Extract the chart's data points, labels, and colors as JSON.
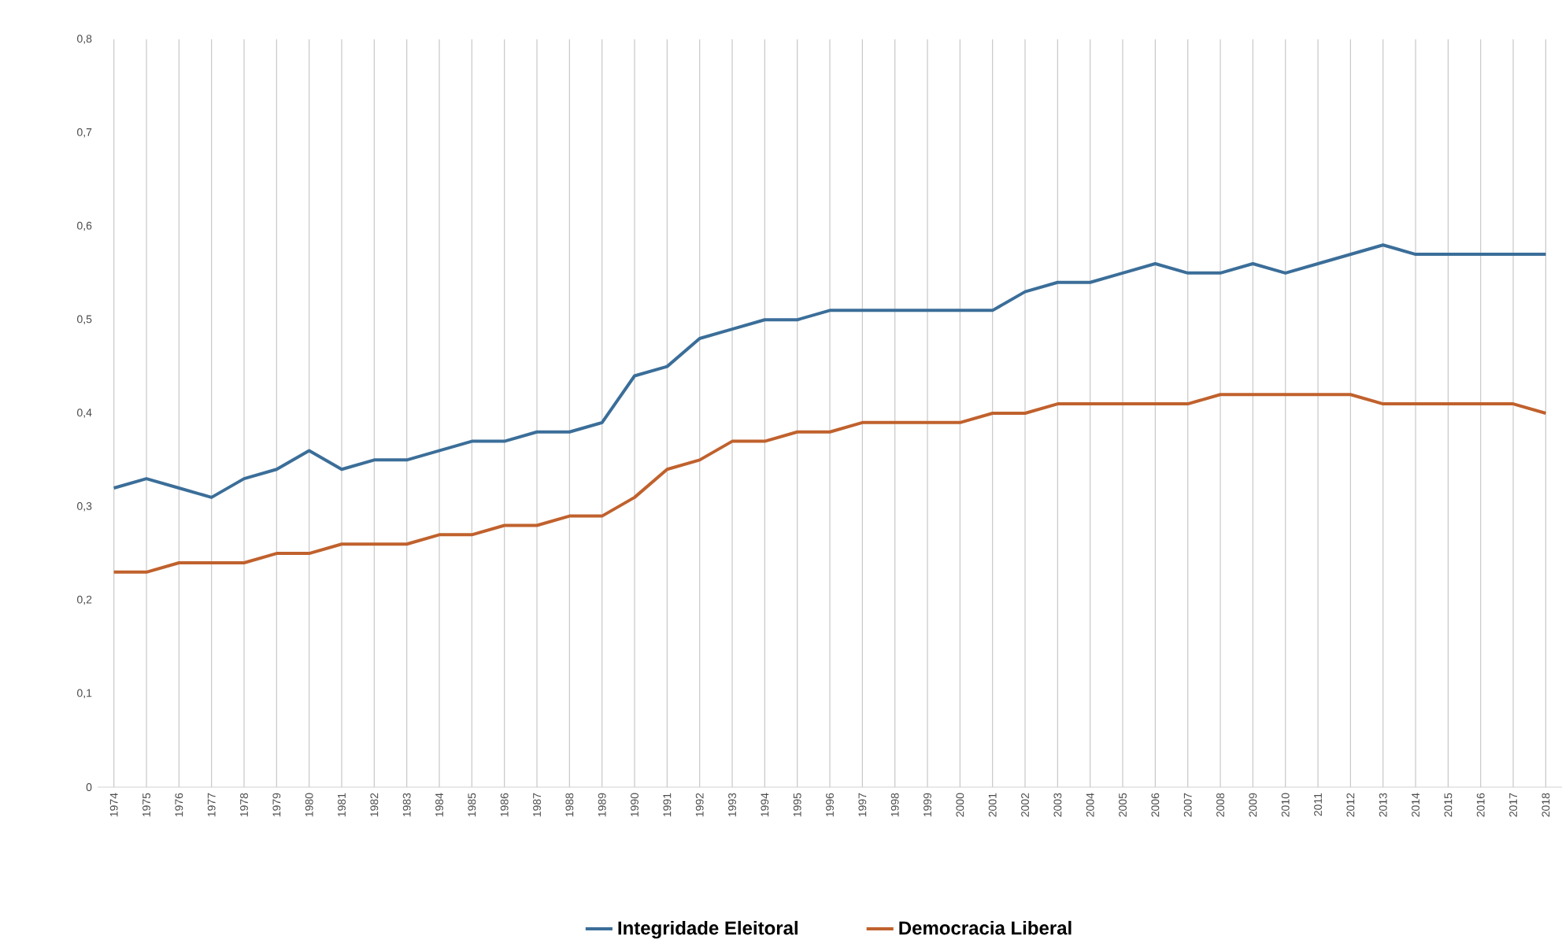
{
  "chart_data": {
    "type": "line",
    "categories": [
      "1974",
      "1975",
      "1976",
      "1977",
      "1978",
      "1979",
      "1980",
      "1981",
      "1982",
      "1983",
      "1984",
      "1985",
      "1986",
      "1987",
      "1988",
      "1989",
      "1990",
      "1991",
      "1992",
      "1993",
      "1994",
      "1995",
      "1996",
      "1997",
      "1998",
      "1999",
      "2000",
      "2001",
      "2002",
      "2003",
      "2004",
      "2005",
      "2006",
      "2007",
      "2008",
      "2009",
      "2010",
      "2011",
      "2012",
      "2013",
      "2014",
      "2015",
      "2016",
      "2017",
      "2018"
    ],
    "series": [
      {
        "name": "Integridade Eleitoral",
        "color": "#3b6e99",
        "values": [
          0.32,
          0.33,
          0.32,
          0.31,
          0.33,
          0.34,
          0.36,
          0.34,
          0.35,
          0.35,
          0.36,
          0.37,
          0.37,
          0.38,
          0.38,
          0.39,
          0.44,
          0.45,
          0.48,
          0.49,
          0.5,
          0.5,
          0.51,
          0.51,
          0.51,
          0.51,
          0.51,
          0.51,
          0.53,
          0.54,
          0.54,
          0.55,
          0.56,
          0.55,
          0.55,
          0.56,
          0.55,
          0.56,
          0.57,
          0.58,
          0.57,
          0.57,
          0.57,
          0.57,
          0.57
        ]
      },
      {
        "name": "Democracia Liberal",
        "color": "#c0612d",
        "values": [
          0.23,
          0.23,
          0.24,
          0.24,
          0.24,
          0.25,
          0.25,
          0.26,
          0.26,
          0.26,
          0.27,
          0.27,
          0.28,
          0.28,
          0.29,
          0.29,
          0.31,
          0.34,
          0.35,
          0.37,
          0.37,
          0.38,
          0.38,
          0.39,
          0.39,
          0.39,
          0.39,
          0.4,
          0.4,
          0.41,
          0.41,
          0.41,
          0.41,
          0.41,
          0.42,
          0.42,
          0.42,
          0.42,
          0.42,
          0.41,
          0.41,
          0.41,
          0.41,
          0.41,
          0.4
        ]
      }
    ],
    "ylim": [
      0,
      0.8
    ],
    "yticks": [
      0,
      {
        "value": 0.1,
        "label": "0,1"
      },
      {
        "value": 0.2,
        "label": "0,2"
      },
      {
        "value": 0.3,
        "label": "0,3"
      },
      {
        "value": 0.4,
        "label": "0,4"
      },
      {
        "value": 0.5,
        "label": "0,5"
      },
      {
        "value": 0.6,
        "label": "0,6"
      },
      {
        "value": 0.7,
        "label": "0,7"
      },
      {
        "value": 0.8,
        "label": "0,8"
      }
    ],
    "grid": "x",
    "legend": "bottom",
    "marker": "none",
    "line_style": "solid"
  }
}
